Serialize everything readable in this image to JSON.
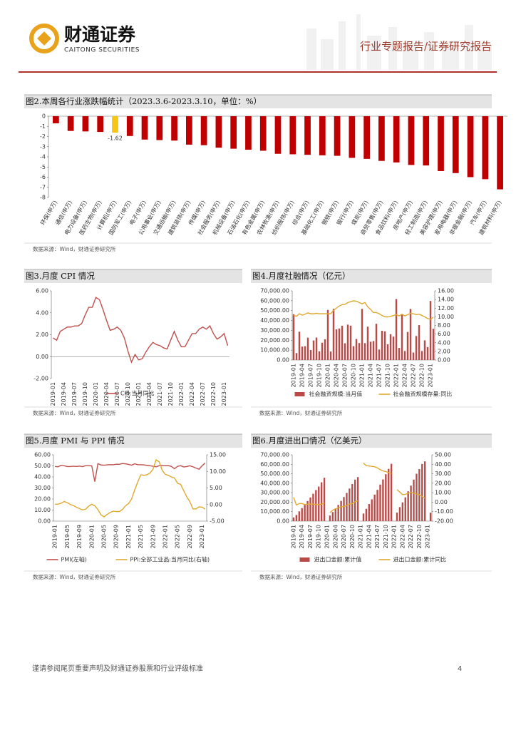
{
  "header": {
    "logo": "财通证券",
    "logo_en": "CAITONG SECURITIES",
    "report_type": "行业专题报告/证券研究报告"
  },
  "chart_data": [
    {
      "type": "bar",
      "title": "图2.本周各行业涨跌幅统计（2023.3.6-2023.3.10，单位：%）",
      "source": "数据来源：Wind，财通证券研究所",
      "categories": [
        "环保(申万)",
        "通信(申万)",
        "电力设备(申万)",
        "医药生物(申万)",
        "计算机(申万)",
        "国防军工(申万)",
        "电子(申万)",
        "公用事业(申万)",
        "交通运输(申万)",
        "建筑装饰(申万)",
        "传媒(申万)",
        "社会服务(申万)",
        "机械设备(申万)",
        "石油石化(申万)",
        "有色金属(申万)",
        "农林牧渔(申万)",
        "纺织服饰(申万)",
        "综合(申万)",
        "基础化工(申万)",
        "钢铁(申万)",
        "银行(申万)",
        "煤炭(申万)",
        "商贸零售(申万)",
        "食品饮料(申万)",
        "房地产(申万)",
        "轻工制造(申万)",
        "美容护理(申万)",
        "家用电器(申万)",
        "非银金融(申万)",
        "汽车(申万)",
        "建筑材料(申万)"
      ],
      "values": [
        -0.7,
        -1.45,
        -1.5,
        -1.55,
        -1.62,
        -1.95,
        -2.3,
        -2.35,
        -2.4,
        -2.8,
        -2.85,
        -3.1,
        -3.2,
        -3.3,
        -3.4,
        -3.7,
        -3.75,
        -3.8,
        -3.85,
        -3.9,
        -4.1,
        -4.2,
        -4.4,
        -4.55,
        -4.8,
        -4.85,
        -5.4,
        -5.6,
        -6.0,
        -6.2,
        -7.2
      ],
      "color": "#c00000",
      "colors": [
        "#c00000",
        "#c00000",
        "#c00000",
        "#c00000",
        "#f5c518",
        "#c00000",
        "#c00000",
        "#c00000",
        "#c00000",
        "#c00000",
        "#c00000",
        "#c00000",
        "#c00000",
        "#c00000",
        "#c00000",
        "#c00000",
        "#c00000",
        "#c00000",
        "#c00000",
        "#c00000",
        "#c00000",
        "#c00000",
        "#c00000",
        "#c00000",
        "#c00000",
        "#c00000",
        "#c00000",
        "#c00000",
        "#c00000",
        "#c00000",
        "#c00000"
      ],
      "ylim": [
        -8,
        0
      ],
      "yticks": [
        0,
        -1,
        -2,
        -3,
        -4,
        -5,
        -6,
        -7,
        -8
      ]
    },
    {
      "type": "line",
      "title": "图3.月度 CPI 情况",
      "source": "数据来源：Wind，财通证券研究所",
      "categories": [
        "2019-01",
        null,
        null,
        "2019-04",
        null,
        null,
        "2019-07",
        null,
        null,
        "2019-10",
        null,
        null,
        "2020-01",
        null,
        null,
        "2020-04",
        null,
        null,
        "2020-07",
        null,
        null,
        "2020-10",
        null,
        null,
        "2021-01",
        null,
        null,
        "2021-04",
        null,
        null,
        "2021-07",
        null,
        null,
        "2021-10",
        null,
        null,
        "2022-01",
        null,
        null,
        "2022-04",
        null,
        null,
        "2022-07",
        null,
        null,
        "2022-10",
        null,
        null,
        "2023-01",
        null
      ],
      "series": [
        {
          "name": "CPI:当月同比",
          "color": "#c0504d",
          "values": [
            1.7,
            1.5,
            2.3,
            2.5,
            2.7,
            2.7,
            2.8,
            2.8,
            3.0,
            3.8,
            4.5,
            4.5,
            5.4,
            5.2,
            4.3,
            3.3,
            2.4,
            2.5,
            2.7,
            2.4,
            1.7,
            0.5,
            -0.5,
            0.2,
            -0.3,
            -0.2,
            0.4,
            0.9,
            1.3,
            1.1,
            1.0,
            0.8,
            0.7,
            1.5,
            2.3,
            1.5,
            0.9,
            0.9,
            1.5,
            2.1,
            2.1,
            2.5,
            2.7,
            2.5,
            2.8,
            2.1,
            1.6,
            1.8,
            2.1,
            1.0
          ]
        }
      ],
      "ylim": [
        -2,
        6
      ],
      "yticks": [
        {
          "value": -2,
          "label": "-2.00"
        },
        {
          "value": 0,
          "label": "0.00"
        },
        {
          "value": 2,
          "label": "2.00"
        },
        {
          "value": 4,
          "label": "4.00"
        },
        {
          "value": 6,
          "label": "6.00"
        }
      ]
    },
    {
      "type": "combo",
      "title": "图4.月度社融情况（亿元）",
      "source": "数据来源：Wind，财通证券研究所",
      "categories": [
        "2019-01",
        null,
        null,
        "2019-04",
        null,
        null,
        "2019-07",
        null,
        null,
        "2019-10",
        null,
        null,
        "2020-01",
        null,
        null,
        "2020-04",
        null,
        null,
        "2020-07",
        null,
        null,
        "2020-10",
        null,
        null,
        "2021-01",
        null,
        null,
        "2021-04",
        null,
        null,
        "2021-07",
        null,
        null,
        "2021-10",
        null,
        null,
        "2022-01",
        null,
        null,
        "2022-04",
        null,
        null,
        "2022-07",
        null,
        null,
        "2022-10",
        null,
        null,
        "2023-01",
        null
      ],
      "series": [
        {
          "name": "社会融资规模:当月值",
          "color": "#b94a48",
          "type": "bar",
          "values": [
            46400,
            7030,
            28600,
            13600,
            14000,
            22600,
            10100,
            19800,
            22700,
            8800,
            17500,
            21000,
            50700,
            8600,
            51800,
            31000,
            31900,
            34700,
            16900,
            35800,
            34800,
            14000,
            21300,
            17200,
            51700,
            17100,
            33800,
            18500,
            19200,
            36700,
            10600,
            29600,
            29000,
            15900,
            26100,
            23700,
            61700,
            12200,
            46500,
            9100,
            28400,
            51700,
            7600,
            24300,
            35300,
            9100,
            19900,
            13100,
            59800,
            31600
          ]
        },
        {
          "name": "社会融资规模存量:同比",
          "color": "#e0a82e",
          "type": "line",
          "axis": "y2",
          "values": [
            10.4,
            10.1,
            10.7,
            10.4,
            10.6,
            10.9,
            10.7,
            10.7,
            10.8,
            10.7,
            10.7,
            10.7,
            10.7,
            10.7,
            11.5,
            12.0,
            12.5,
            12.8,
            12.9,
            13.3,
            13.5,
            13.7,
            13.6,
            13.3,
            13.0,
            13.3,
            12.3,
            11.7,
            11.0,
            11.0,
            10.7,
            10.3,
            10.0,
            10.0,
            10.1,
            10.3,
            10.5,
            10.2,
            10.6,
            10.2,
            10.5,
            10.8,
            10.7,
            10.5,
            10.6,
            10.3,
            10.0,
            9.6,
            9.4,
            9.9
          ]
        }
      ],
      "ylim": [
        0,
        70000
      ],
      "yticks": [
        {
          "value": 0,
          "label": "0.00"
        },
        {
          "value": 10000,
          "label": "10,000.00"
        },
        {
          "value": 20000,
          "label": "20,000.00"
        },
        {
          "value": 30000,
          "label": "30,000.00"
        },
        {
          "value": 40000,
          "label": "40,000.00"
        },
        {
          "value": 50000,
          "label": "50,000.00"
        },
        {
          "value": 60000,
          "label": "60,000.00"
        },
        {
          "value": 70000,
          "label": "70,000.00"
        }
      ],
      "y2lim": [
        0,
        16
      ],
      "y2ticks": [
        {
          "value": 0,
          "label": "0.00"
        },
        {
          "value": 2,
          "label": "2.00"
        },
        {
          "value": 4,
          "label": "4.00"
        },
        {
          "value": 6,
          "label": "6.00"
        },
        {
          "value": 8,
          "label": "8.00"
        },
        {
          "value": 10,
          "label": "10.00"
        },
        {
          "value": 12,
          "label": "12.00"
        },
        {
          "value": 14,
          "label": "14.00"
        },
        {
          "value": 16,
          "label": "16.00"
        }
      ]
    },
    {
      "type": "line",
      "title": "图5.月度 PMI 与 PPI 情况",
      "source": "数据来源：Wind，财通证券研究所",
      "categories": [
        "2019-01",
        null,
        null,
        null,
        "2019-05",
        null,
        null,
        null,
        "2019-09",
        null,
        null,
        null,
        "2020-01",
        null,
        null,
        null,
        "2020-05",
        null,
        null,
        null,
        "2020-09",
        null,
        null,
        null,
        "2021-01",
        null,
        null,
        null,
        "2021-05",
        null,
        null,
        null,
        "2021-09",
        null,
        null,
        null,
        "2022-01",
        null,
        null,
        null,
        "2022-05",
        null,
        null,
        null,
        "2022-09",
        null,
        null,
        null,
        "2023-01",
        null
      ],
      "series": [
        {
          "name": "PMI(左轴)",
          "color": "#c0504d",
          "values": [
            49.5,
            49.2,
            50.5,
            50.1,
            49.4,
            49.4,
            49.7,
            49.5,
            49.8,
            49.3,
            50.2,
            50.2,
            50.0,
            35.7,
            52.0,
            50.8,
            50.6,
            50.9,
            51.1,
            51.0,
            51.5,
            51.4,
            52.1,
            51.9,
            51.3,
            50.6,
            51.9,
            51.1,
            51.0,
            50.9,
            50.4,
            50.1,
            49.6,
            49.2,
            50.1,
            50.3,
            50.1,
            50.2,
            49.5,
            47.4,
            49.6,
            50.2,
            49.0,
            49.4,
            50.1,
            49.2,
            48.0,
            47.0,
            50.1,
            52.6
          ]
        },
        {
          "name": "PPI:全部工业品:当月同比(右轴)",
          "color": "#e0a82e",
          "axis": "y2",
          "values": [
            0.1,
            0.1,
            0.4,
            0.9,
            0.6,
            0.0,
            -0.3,
            -0.8,
            -1.2,
            -1.6,
            -1.4,
            -0.5,
            0.1,
            -0.4,
            -1.5,
            -3.1,
            -3.7,
            -3.0,
            -2.4,
            -2.0,
            -2.1,
            -2.1,
            -1.5,
            -0.4,
            0.3,
            1.7,
            4.4,
            6.8,
            9.0,
            8.8,
            9.0,
            9.5,
            10.7,
            13.5,
            12.9,
            10.3,
            9.1,
            8.8,
            8.3,
            8.0,
            6.4,
            6.1,
            4.2,
            2.3,
            0.9,
            -1.3,
            -1.3,
            -0.7,
            -0.8,
            -1.4
          ]
        }
      ],
      "ylim": [
        0,
        60
      ],
      "yticks": [
        {
          "value": 0,
          "label": "0.00"
        },
        {
          "value": 10,
          "label": "10.00"
        },
        {
          "value": 20,
          "label": "20.00"
        },
        {
          "value": 30,
          "label": "30.00"
        },
        {
          "value": 40,
          "label": "40.00"
        },
        {
          "value": 50,
          "label": "50.00"
        },
        {
          "value": 60,
          "label": "60.00"
        }
      ],
      "y2lim": [
        -5,
        15
      ],
      "y2ticks": [
        {
          "value": -5,
          "label": "-5.00"
        },
        {
          "value": 0,
          "label": "0.00"
        },
        {
          "value": 5,
          "label": "5.00"
        },
        {
          "value": 10,
          "label": "10.00"
        },
        {
          "value": 15,
          "label": "15.00"
        }
      ]
    },
    {
      "type": "combo",
      "title": "图6.月度进出口情况（亿美元）",
      "source": "数据来源：Wind，财通证券研究所",
      "categories": [
        "2019-01",
        null,
        null,
        "2019-04",
        null,
        null,
        "2019-07",
        null,
        null,
        "2019-10",
        null,
        null,
        "2020-01",
        null,
        null,
        "2020-04",
        null,
        null,
        "2020-07",
        null,
        null,
        "2020-10",
        null,
        null,
        "2021-01",
        null,
        null,
        "2021-04",
        null,
        null,
        "2021-07",
        null,
        null,
        "2021-10",
        null,
        null,
        "2022-01",
        null,
        null,
        "2022-04",
        null,
        null,
        "2022-07",
        null,
        null,
        "2022-10",
        null,
        null,
        "2023-01",
        null
      ],
      "series": [
        {
          "name": "进出口金额:累计值",
          "color": "#b94a48",
          "type": "bar",
          "values": [
            3900,
            6500,
            10300,
            13800,
            17700,
            21200,
            25000,
            28900,
            32800,
            36500,
            41000,
            45800,
            null,
            5900,
            9600,
            13400,
            17100,
            21300,
            25400,
            29800,
            34400,
            39100,
            43800,
            46500,
            null,
            8000,
            13000,
            18000,
            23000,
            28000,
            33000,
            38600,
            44000,
            49500,
            55200,
            60500,
            null,
            9000,
            14800,
            19800,
            25100,
            31500,
            37500,
            43800,
            50000,
            54900,
            60300,
            63100,
            null,
            8900
          ]
        },
        {
          "name": "进出口金额:累计同比",
          "color": "#e0a82e",
          "type": "line",
          "axis": "y2",
          "values": [
            5,
            -3,
            -1.5,
            -1.4,
            -2.5,
            -2.2,
            -2.0,
            -2.1,
            -2.5,
            -2.6,
            -2.2,
            -1.0,
            null,
            -11,
            -8.5,
            -7,
            -6,
            -5,
            -4.5,
            -3.5,
            -2,
            -1.5,
            0.5,
            1.5,
            null,
            41.2,
            38.6,
            38.2,
            37.8,
            37.4,
            36.2,
            34.3,
            33.0,
            32.3,
            31.3,
            30.0,
            null,
            13.3,
            10.7,
            8.0,
            8.3,
            9.4,
            10.2,
            9.5,
            8.6,
            8.0,
            6.0,
            4.4,
            null,
            -8.5
          ]
        }
      ],
      "ylim": [
        0,
        70000
      ],
      "yticks": [
        {
          "value": 0,
          "label": "0.00"
        },
        {
          "value": 10000,
          "label": "10,000.00"
        },
        {
          "value": 20000,
          "label": "20,000.00"
        },
        {
          "value": 30000,
          "label": "30,000.00"
        },
        {
          "value": 40000,
          "label": "40,000.00"
        },
        {
          "value": 50000,
          "label": "50,000.00"
        },
        {
          "value": 60000,
          "label": "60,000.00"
        },
        {
          "value": 70000,
          "label": "70,000.00"
        }
      ],
      "y2lim": [
        -20,
        50
      ],
      "y2ticks": [
        {
          "value": -20,
          "label": "-20.00"
        },
        {
          "value": -10,
          "label": "-10.00"
        },
        {
          "value": 0,
          "label": "0.00"
        },
        {
          "value": 10,
          "label": "10.00"
        },
        {
          "value": 20,
          "label": "20.00"
        },
        {
          "value": 30,
          "label": "30.00"
        },
        {
          "value": 40,
          "label": "40.00"
        },
        {
          "value": 50,
          "label": "50.00"
        }
      ]
    }
  ],
  "footer": {
    "disclaimer": "谨请参阅尾页重要声明及财通证券股票和行业评级标准",
    "page": 4
  }
}
